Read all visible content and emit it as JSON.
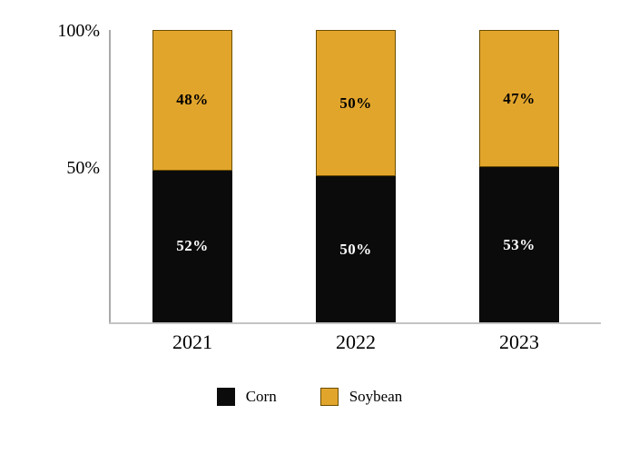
{
  "chart_data": {
    "type": "bar",
    "stacked": true,
    "categories": [
      "2021",
      "2022",
      "2023"
    ],
    "series": [
      {
        "name": "Corn",
        "color": "#0b0b0b",
        "label_color": "#ffffff",
        "values": [
          52,
          50,
          53
        ]
      },
      {
        "name": "Soybean",
        "color": "#e2a52c",
        "label_color": "#000000",
        "border": "#6b4e00",
        "values": [
          48,
          50,
          47
        ]
      }
    ],
    "value_suffix": "%",
    "y_ticks": [
      "100%",
      "50%"
    ],
    "ylim": [
      0,
      100
    ],
    "grid": false,
    "legend_position": "bottom"
  }
}
